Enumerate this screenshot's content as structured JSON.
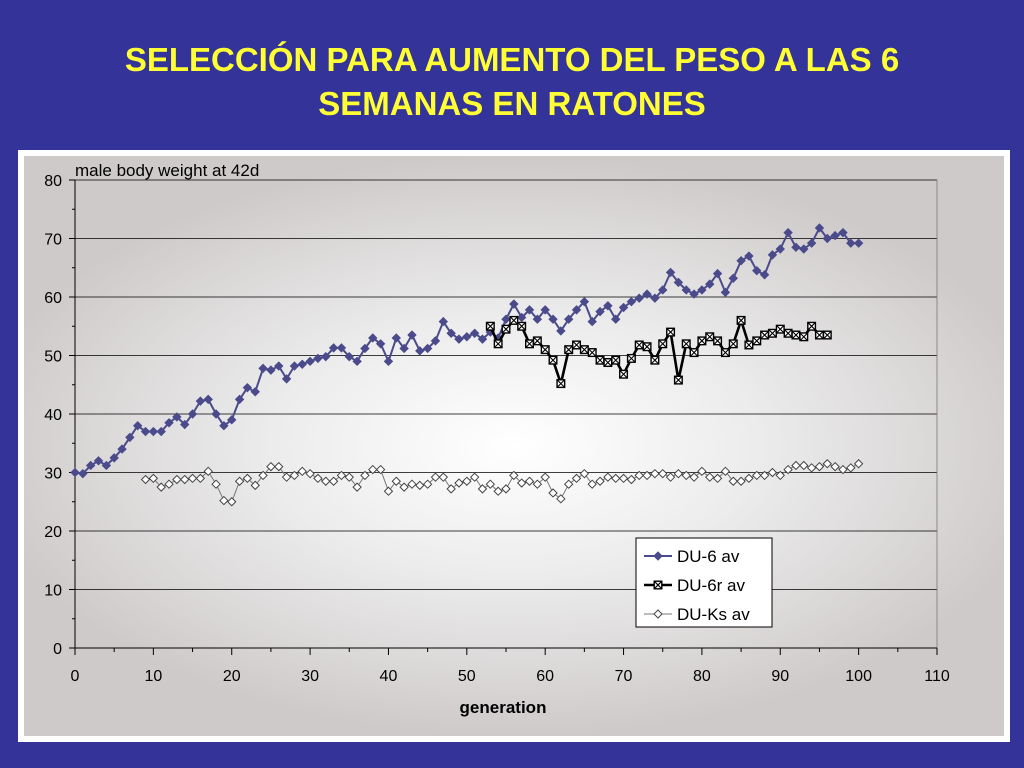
{
  "slide": {
    "title_line1": "SELECCIÓN PARA AUMENTO DEL PESO A LAS 6",
    "title_line2": "SEMANAS EN RATONES",
    "background_color": "#333399",
    "title_color": "#ffff33"
  },
  "chart_data": {
    "type": "line",
    "title": "male body weight at 42d",
    "xlabel": "generation",
    "ylabel": "",
    "xlim": [
      0,
      110
    ],
    "ylim": [
      0,
      80
    ],
    "xticks": [
      0,
      10,
      20,
      30,
      40,
      50,
      60,
      70,
      80,
      90,
      100,
      110
    ],
    "yticks": [
      0,
      10,
      20,
      30,
      40,
      50,
      60,
      70,
      80
    ],
    "grid": "horizontal",
    "legend_position": "bottom-right",
    "series": [
      {
        "name": "DU-6 av",
        "color": "#4b4b8c",
        "marker": "diamond-filled",
        "x": [
          0,
          1,
          2,
          3,
          4,
          5,
          6,
          7,
          8,
          9,
          10,
          11,
          12,
          13,
          14,
          15,
          16,
          17,
          18,
          19,
          20,
          21,
          22,
          23,
          24,
          25,
          26,
          27,
          28,
          29,
          30,
          31,
          32,
          33,
          34,
          35,
          36,
          37,
          38,
          39,
          40,
          41,
          42,
          43,
          44,
          45,
          46,
          47,
          48,
          49,
          50,
          51,
          52,
          53,
          54,
          55,
          56,
          57,
          58,
          59,
          60,
          61,
          62,
          63,
          64,
          65,
          66,
          67,
          68,
          69,
          70,
          71,
          72,
          73,
          74,
          75,
          76,
          77,
          78,
          79,
          80,
          81,
          82,
          83,
          84,
          85,
          86,
          87,
          88,
          89,
          90,
          91,
          92,
          93,
          94,
          95,
          96,
          97,
          98,
          99,
          100
        ],
        "y": [
          30,
          29.8,
          31.2,
          32,
          31.2,
          32.5,
          34,
          36,
          38,
          37,
          37,
          37,
          38.5,
          39.5,
          38.2,
          40,
          42.2,
          42.5,
          40,
          38,
          39,
          42.5,
          44.5,
          43.8,
          47.8,
          47.5,
          48.2,
          46,
          48.2,
          48.5,
          49,
          49.5,
          49.8,
          51.3,
          51.3,
          49.8,
          49,
          51.2,
          53,
          52,
          49,
          53,
          51.2,
          53.5,
          50.8,
          51.2,
          52.5,
          55.8,
          53.8,
          52.8,
          53.2,
          53.8,
          52.8,
          54,
          53,
          56.2,
          58.8,
          56.5,
          57.8,
          56.2,
          57.8,
          56.2,
          54.2,
          56.2,
          57.8,
          59.2,
          55.8,
          57.5,
          58.5,
          56.2,
          58.2,
          59.2,
          59.8,
          60.5,
          59.8,
          61.2,
          64.2,
          62.5,
          61.2,
          60.5,
          61.2,
          62.2,
          64,
          60.8,
          63.2,
          66.2,
          67,
          64.5,
          63.8,
          67.2,
          68.2,
          71,
          68.5,
          68.2,
          69.2,
          71.8,
          70,
          70.5,
          71,
          69.2,
          69.2
        ]
      },
      {
        "name": "DU-6r av",
        "color": "#000000",
        "marker": "square-x",
        "x": [
          53,
          54,
          55,
          56,
          57,
          58,
          59,
          60,
          61,
          62,
          63,
          64,
          65,
          66,
          67,
          68,
          69,
          70,
          71,
          72,
          73,
          74,
          75,
          76,
          77,
          78,
          79,
          80,
          81,
          82,
          83,
          84,
          85,
          86,
          87,
          88,
          89,
          90,
          91,
          92,
          93,
          94,
          95,
          96
        ],
        "y": [
          55,
          52,
          54.5,
          56,
          55,
          52,
          52.5,
          51,
          49.2,
          45.2,
          51,
          51.8,
          51,
          50.5,
          49.2,
          48.8,
          49.2,
          46.8,
          49.5,
          51.8,
          51.5,
          49.2,
          52,
          54,
          45.8,
          52,
          50.5,
          52.5,
          53.2,
          52.5,
          50.5,
          52,
          56,
          51.8,
          52.5,
          53.5,
          53.8,
          54.5,
          53.8,
          53.5,
          53.2,
          55,
          53.5,
          53.5
        ]
      },
      {
        "name": "DU-Ks av",
        "color": "#333333",
        "marker": "diamond-open",
        "x": [
          9,
          10,
          11,
          12,
          13,
          14,
          15,
          16,
          17,
          18,
          19,
          20,
          21,
          22,
          23,
          24,
          25,
          26,
          27,
          28,
          29,
          30,
          31,
          32,
          33,
          34,
          35,
          36,
          37,
          38,
          39,
          40,
          41,
          42,
          43,
          44,
          45,
          46,
          47,
          48,
          49,
          50,
          51,
          52,
          53,
          54,
          55,
          56,
          57,
          58,
          59,
          60,
          61,
          62,
          63,
          64,
          65,
          66,
          67,
          68,
          69,
          70,
          71,
          72,
          73,
          74,
          75,
          76,
          77,
          78,
          79,
          80,
          81,
          82,
          83,
          84,
          85,
          86,
          87,
          88,
          89,
          90,
          91,
          92,
          93,
          94,
          95,
          96,
          97,
          98,
          99,
          100
        ],
        "y": [
          28.8,
          29,
          27.5,
          28,
          28.8,
          28.8,
          29,
          29,
          30.2,
          28,
          25.2,
          25,
          28.5,
          29,
          27.8,
          29.5,
          31,
          31,
          29.2,
          29.5,
          30.2,
          29.8,
          29,
          28.5,
          28.5,
          29.5,
          29.2,
          27.5,
          29.5,
          30.5,
          30.5,
          26.8,
          28.5,
          27.5,
          28,
          27.8,
          28,
          29.2,
          29.2,
          27.2,
          28.2,
          28.5,
          29.2,
          27.2,
          28,
          26.8,
          27.2,
          29.5,
          28.2,
          28.5,
          28,
          29.2,
          26.5,
          25.5,
          28,
          29,
          29.8,
          28,
          28.5,
          29.2,
          29,
          29,
          28.8,
          29.5,
          29.5,
          29.8,
          29.8,
          29.2,
          29.8,
          29.5,
          29.2,
          30.2,
          29.2,
          29,
          30.2,
          28.5,
          28.5,
          29,
          29.5,
          29.5,
          30,
          29.5,
          30.5,
          31.2,
          31.2,
          30.8,
          31,
          31.5,
          31,
          30.5,
          30.8,
          31.5
        ]
      }
    ]
  }
}
